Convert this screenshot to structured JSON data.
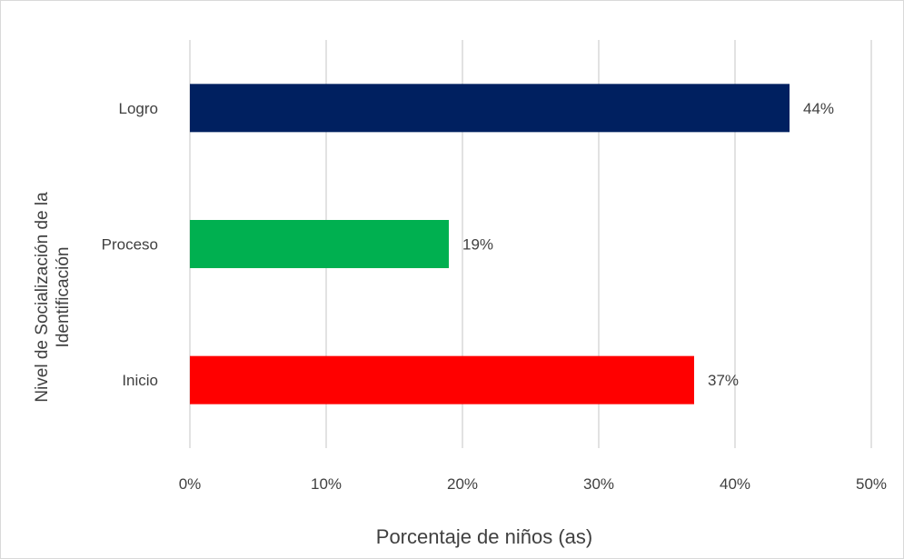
{
  "chart_data": {
    "type": "bar",
    "orientation": "horizontal",
    "title": "",
    "xlabel": "Porcentaje de niños (as)",
    "ylabel_lines": [
      "Nivel de Socialización de la",
      "Identificación"
    ],
    "categories": [
      "Logro",
      "Proceso",
      "Inicio"
    ],
    "values": [
      44,
      19,
      37
    ],
    "data_labels": [
      "44%",
      "19%",
      "37%"
    ],
    "bar_colors": [
      "#002060",
      "#00B050",
      "#FF0000"
    ],
    "xlim": [
      0,
      50
    ],
    "x_ticks": [
      0,
      10,
      20,
      30,
      40,
      50
    ],
    "x_tick_labels": [
      "0%",
      "10%",
      "20%",
      "30%",
      "40%",
      "50%"
    ],
    "grid": "vertical",
    "legend": "none"
  }
}
